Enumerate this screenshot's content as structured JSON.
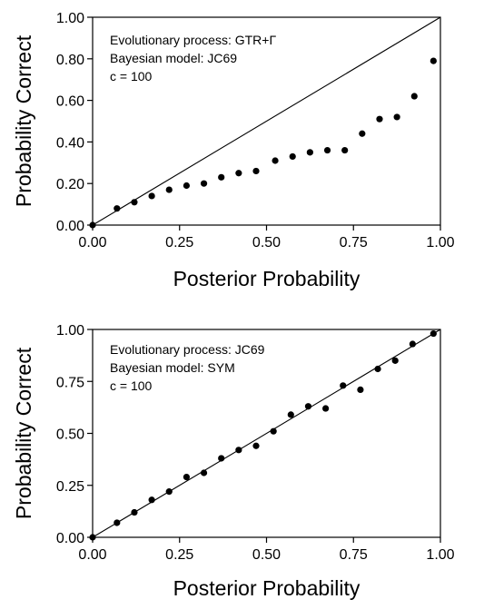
{
  "chart_data": [
    {
      "type": "scatter",
      "title": "",
      "xlabel": "Posterior Probability",
      "ylabel": "Probability Correct",
      "xlim": [
        0,
        1
      ],
      "ylim": [
        0,
        1
      ],
      "xticks": [
        "0.00",
        "0.25",
        "0.50",
        "0.75",
        "1.00"
      ],
      "yticks": [
        "0.00",
        "0.20",
        "0.40",
        "0.60",
        "0.80",
        "1.00"
      ],
      "xtick_values": [
        0,
        0.25,
        0.5,
        0.75,
        1.0
      ],
      "ytick_values": [
        0,
        0.2,
        0.4,
        0.6,
        0.8,
        1.0
      ],
      "grid": false,
      "reference_line": "diagonal y = x",
      "annotations": [
        "Evolutionary process: GTR+Γ",
        "Bayesian model: JC69",
        "c = 100"
      ],
      "points": [
        {
          "x": 0.0,
          "y": 0.0
        },
        {
          "x": 0.07,
          "y": 0.08
        },
        {
          "x": 0.12,
          "y": 0.11
        },
        {
          "x": 0.17,
          "y": 0.14
        },
        {
          "x": 0.22,
          "y": 0.17
        },
        {
          "x": 0.27,
          "y": 0.19
        },
        {
          "x": 0.32,
          "y": 0.2
        },
        {
          "x": 0.37,
          "y": 0.23
        },
        {
          "x": 0.42,
          "y": 0.25
        },
        {
          "x": 0.47,
          "y": 0.26
        },
        {
          "x": 0.525,
          "y": 0.31
        },
        {
          "x": 0.575,
          "y": 0.33
        },
        {
          "x": 0.625,
          "y": 0.35
        },
        {
          "x": 0.675,
          "y": 0.36
        },
        {
          "x": 0.725,
          "y": 0.36
        },
        {
          "x": 0.775,
          "y": 0.44
        },
        {
          "x": 0.825,
          "y": 0.51
        },
        {
          "x": 0.875,
          "y": 0.52
        },
        {
          "x": 0.925,
          "y": 0.62
        },
        {
          "x": 0.98,
          "y": 0.79
        }
      ]
    },
    {
      "type": "scatter",
      "title": "",
      "xlabel": "Posterior Probability",
      "ylabel": "Probability Correct",
      "xlim": [
        0,
        1
      ],
      "ylim": [
        0,
        1
      ],
      "xticks": [
        "0.00",
        "0.25",
        "0.50",
        "0.75",
        "1.00"
      ],
      "yticks": [
        "0.00",
        "0.25",
        "0.50",
        "0.75",
        "1.00"
      ],
      "xtick_values": [
        0,
        0.25,
        0.5,
        0.75,
        1.0
      ],
      "ytick_values": [
        0,
        0.25,
        0.5,
        0.75,
        1.0
      ],
      "grid": false,
      "reference_line": "diagonal y = x",
      "annotations": [
        "Evolutionary process: JC69",
        "Bayesian model: SYM",
        "c = 100"
      ],
      "points": [
        {
          "x": 0.0,
          "y": 0.0
        },
        {
          "x": 0.07,
          "y": 0.07
        },
        {
          "x": 0.12,
          "y": 0.12
        },
        {
          "x": 0.17,
          "y": 0.18
        },
        {
          "x": 0.22,
          "y": 0.22
        },
        {
          "x": 0.27,
          "y": 0.29
        },
        {
          "x": 0.32,
          "y": 0.31
        },
        {
          "x": 0.37,
          "y": 0.38
        },
        {
          "x": 0.42,
          "y": 0.42
        },
        {
          "x": 0.47,
          "y": 0.44
        },
        {
          "x": 0.52,
          "y": 0.51
        },
        {
          "x": 0.57,
          "y": 0.59
        },
        {
          "x": 0.62,
          "y": 0.63
        },
        {
          "x": 0.67,
          "y": 0.62
        },
        {
          "x": 0.72,
          "y": 0.73
        },
        {
          "x": 0.77,
          "y": 0.71
        },
        {
          "x": 0.82,
          "y": 0.81
        },
        {
          "x": 0.87,
          "y": 0.85
        },
        {
          "x": 0.92,
          "y": 0.93
        },
        {
          "x": 0.98,
          "y": 0.98
        }
      ]
    }
  ]
}
